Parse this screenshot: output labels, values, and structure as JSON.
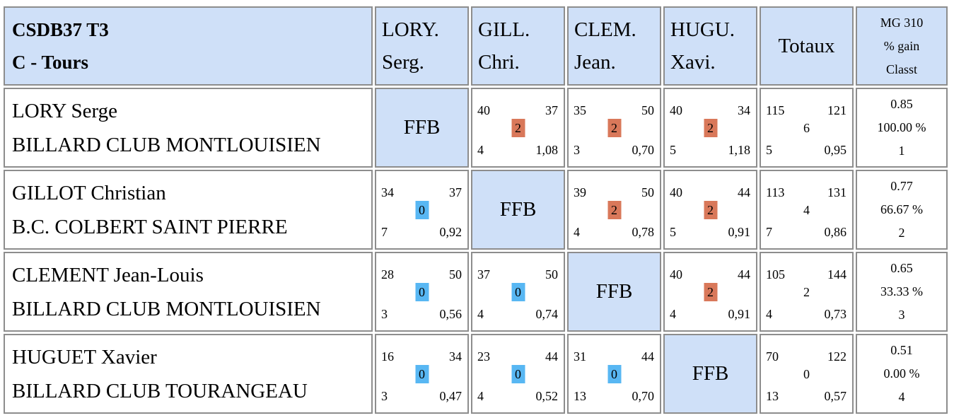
{
  "header": {
    "title_line1": "CSDB37 T3",
    "title_line2": "C - Tours",
    "columns": [
      {
        "line1": "LORY.",
        "line2": "Serg."
      },
      {
        "line1": "GILL.",
        "line2": "Chri."
      },
      {
        "line1": "CLEM.",
        "line2": "Jean."
      },
      {
        "line1": "HUGU.",
        "line2": "Xavi."
      }
    ],
    "totals": "Totaux",
    "mg_line1": "MG 310",
    "mg_line2": "% gain",
    "mg_line3": "Classt"
  },
  "ffb_label": "FFB",
  "players": [
    {
      "name": "LORY Serge",
      "club": "BILLARD CLUB MONTLOUISIEN",
      "matches": [
        null,
        {
          "points_made": "40",
          "target": "37",
          "match_points": "2",
          "innings": "4",
          "average": "1,08",
          "result": "win"
        },
        {
          "points_made": "35",
          "target": "50",
          "match_points": "2",
          "innings": "3",
          "average": "0,70",
          "result": "win"
        },
        {
          "points_made": "40",
          "target": "34",
          "match_points": "2",
          "innings": "5",
          "average": "1,18",
          "result": "win"
        }
      ],
      "totals": {
        "points_made": "115",
        "target": "121",
        "match_points": "6",
        "innings": "5",
        "average": "0,95"
      },
      "mg": "0.85",
      "pct_gain": "100.00 %",
      "rank": "1"
    },
    {
      "name": "GILLOT Christian",
      "club": "B.C. COLBERT SAINT PIERRE",
      "matches": [
        {
          "points_made": "34",
          "target": "37",
          "match_points": "0",
          "innings": "7",
          "average": "0,92",
          "result": "loss"
        },
        null,
        {
          "points_made": "39",
          "target": "50",
          "match_points": "2",
          "innings": "4",
          "average": "0,78",
          "result": "win"
        },
        {
          "points_made": "40",
          "target": "44",
          "match_points": "2",
          "innings": "5",
          "average": "0,91",
          "result": "win"
        }
      ],
      "totals": {
        "points_made": "113",
        "target": "131",
        "match_points": "4",
        "innings": "7",
        "average": "0,86"
      },
      "mg": "0.77",
      "pct_gain": "66.67 %",
      "rank": "2"
    },
    {
      "name": "CLEMENT Jean-Louis",
      "club": "BILLARD CLUB MONTLOUISIEN",
      "matches": [
        {
          "points_made": "28",
          "target": "50",
          "match_points": "0",
          "innings": "3",
          "average": "0,56",
          "result": "loss"
        },
        {
          "points_made": "37",
          "target": "50",
          "match_points": "0",
          "innings": "4",
          "average": "0,74",
          "result": "loss"
        },
        null,
        {
          "points_made": "40",
          "target": "44",
          "match_points": "2",
          "innings": "4",
          "average": "0,91",
          "result": "win"
        }
      ],
      "totals": {
        "points_made": "105",
        "target": "144",
        "match_points": "2",
        "innings": "4",
        "average": "0,73"
      },
      "mg": "0.65",
      "pct_gain": "33.33 %",
      "rank": "3"
    },
    {
      "name": "HUGUET Xavier",
      "club": "BILLARD CLUB TOURANGEAU",
      "matches": [
        {
          "points_made": "16",
          "target": "34",
          "match_points": "0",
          "innings": "3",
          "average": "0,47",
          "result": "loss"
        },
        {
          "points_made": "23",
          "target": "44",
          "match_points": "0",
          "innings": "4",
          "average": "0,52",
          "result": "loss"
        },
        {
          "points_made": "31",
          "target": "44",
          "match_points": "0",
          "innings": "13",
          "average": "0,70",
          "result": "loss"
        },
        null
      ],
      "totals": {
        "points_made": "70",
        "target": "122",
        "match_points": "0",
        "innings": "13",
        "average": "0,57"
      },
      "mg": "0.51",
      "pct_gain": "0.00 %",
      "rank": "4"
    }
  ]
}
